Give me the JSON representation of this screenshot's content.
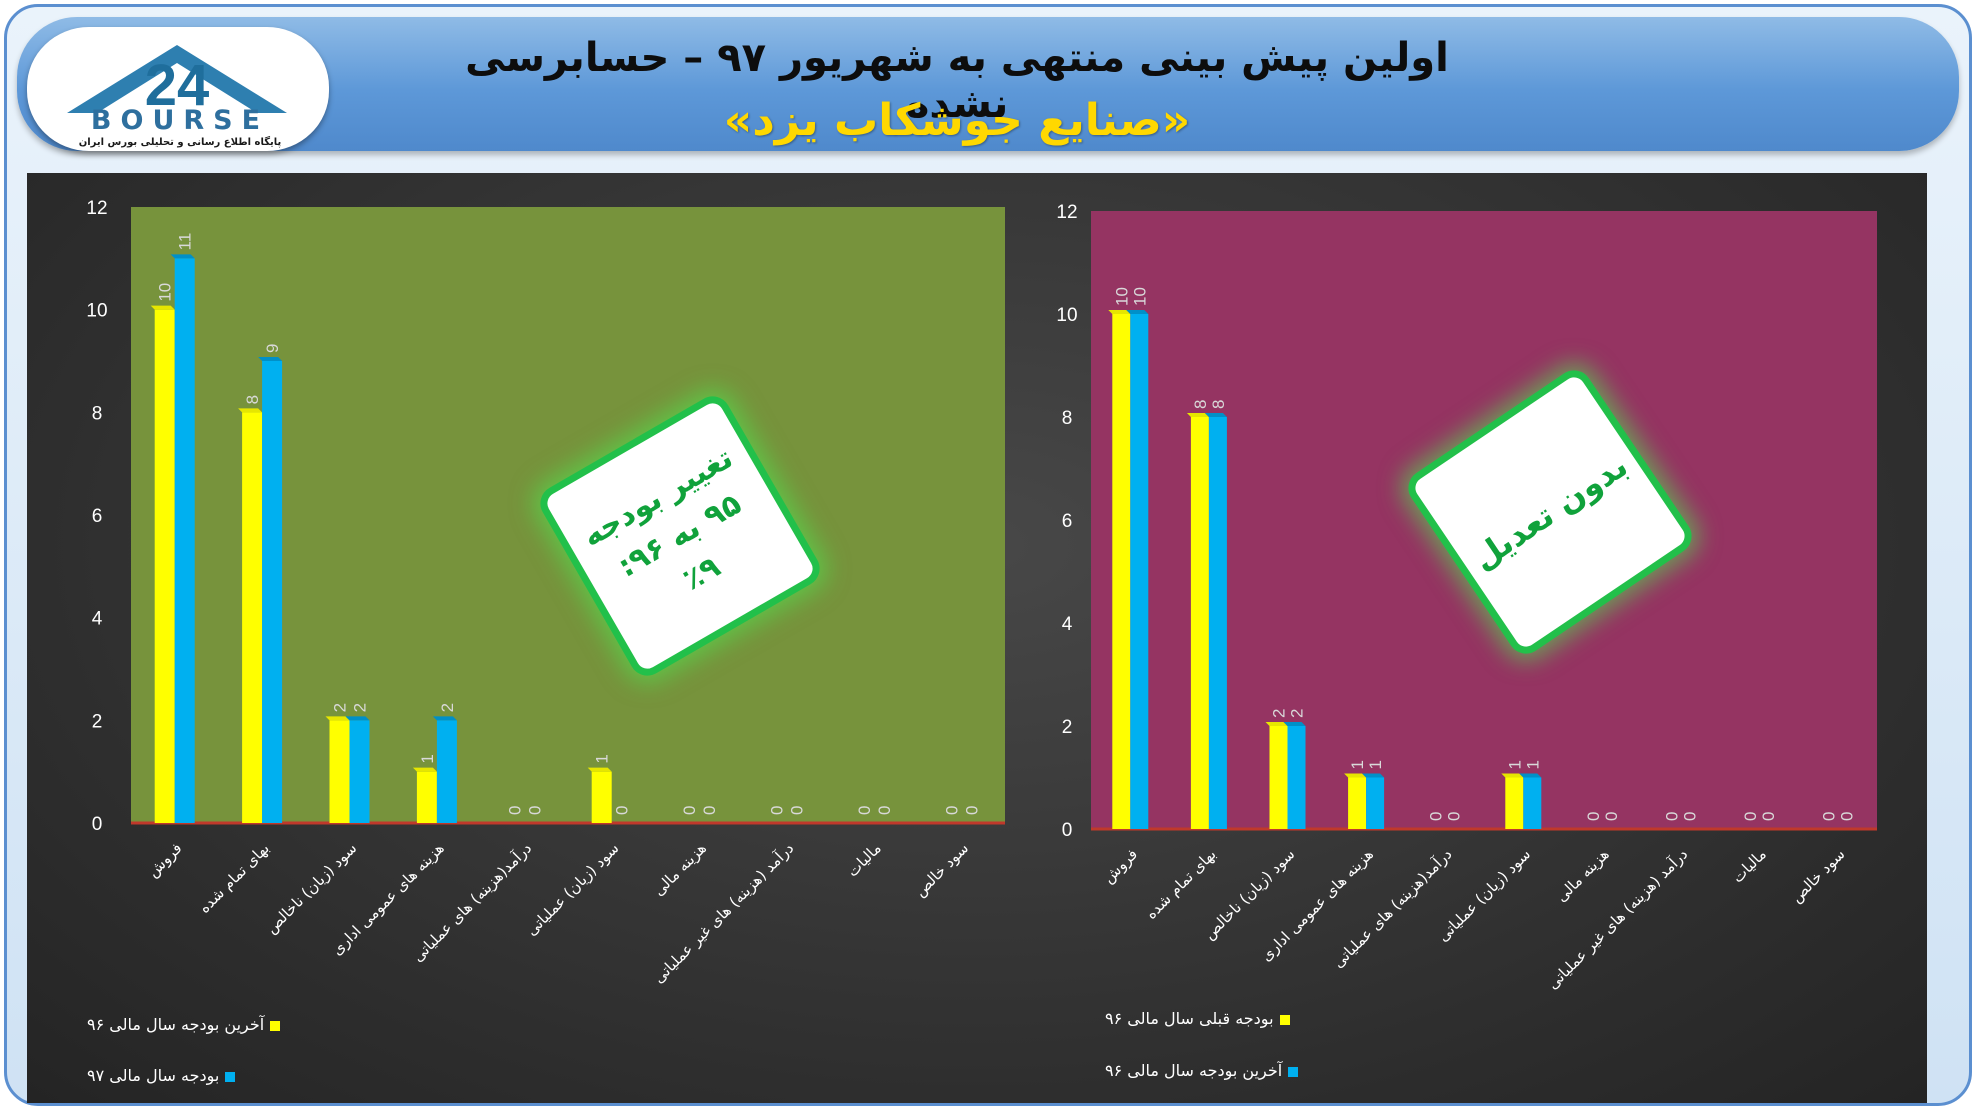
{
  "header": {
    "title": "اولین پیش بینی منتهی به شهریور ۹۷ – حسابرسی نشده",
    "subtitle": "«صنایع جوشکاب یزد»"
  },
  "logo": {
    "mark": "24",
    "word": "BOURSE",
    "tagline": "پایگاه اطلاع رسانی و تحلیلی بورس ایران"
  },
  "colors": {
    "series_yellow": "#ffff00",
    "series_blue": "#00b0f0",
    "left_plot_bg": "#77933c",
    "right_plot_bg": "#953462",
    "badge_border": "#22c04a",
    "badge_text": "#10a23b"
  },
  "badges": {
    "left": "تغییر بودجه\n۹۵ به ۹۶:\n٪۹",
    "right": "بدون تعدیل"
  },
  "chart_data": [
    {
      "type": "bar",
      "categories": [
        "فروش",
        "بهای تمام شده",
        "سود (زیان) ناخالص",
        "هزینه های عمومی اداری",
        "درآمد(هزینه) های عملیاتی",
        "سود (زیان) عملیاتی",
        "هزینه مالی",
        "درآمد (هزینه) های غیر عملیاتی",
        "مالیات",
        "سود خالص"
      ],
      "series": [
        {
          "name": "آخرین بودجه سال مالی ۹۶",
          "color": "#ffff00",
          "values": [
            10,
            8,
            2,
            1,
            0,
            1,
            0,
            0,
            0,
            0
          ]
        },
        {
          "name": "بودجه سال مالی ۹۷",
          "color": "#00b0f0",
          "values": [
            11,
            9,
            2,
            2,
            0,
            0,
            0,
            0,
            0,
            0
          ]
        }
      ],
      "ylim": [
        0,
        12
      ],
      "yticks": [
        0,
        2,
        4,
        6,
        8,
        10,
        12
      ],
      "grid": false,
      "legend": "bottom-left"
    },
    {
      "type": "bar",
      "categories": [
        "فروش",
        "بهای تمام شده",
        "سود (زیان) ناخالص",
        "هزینه های عمومی اداری",
        "درآمد(هزینه) های عملیاتی",
        "سود (زیان) عملیاتی",
        "هزینه مالی",
        "درآمد (هزینه) های غیر عملیاتی",
        "مالیات",
        "سود خالص"
      ],
      "series": [
        {
          "name": "بودجه قبلی سال مالی ۹۶",
          "color": "#ffff00",
          "values": [
            10,
            8,
            2,
            1,
            0,
            1,
            0,
            0,
            0,
            0
          ]
        },
        {
          "name": "آخرین بودجه سال مالی ۹۶",
          "color": "#00b0f0",
          "values": [
            10,
            8,
            2,
            1,
            0,
            1,
            0,
            0,
            0,
            0
          ]
        }
      ],
      "ylim": [
        0,
        12
      ],
      "yticks": [
        0,
        2,
        4,
        6,
        8,
        10,
        12
      ],
      "grid": false,
      "legend": "bottom-left"
    }
  ]
}
